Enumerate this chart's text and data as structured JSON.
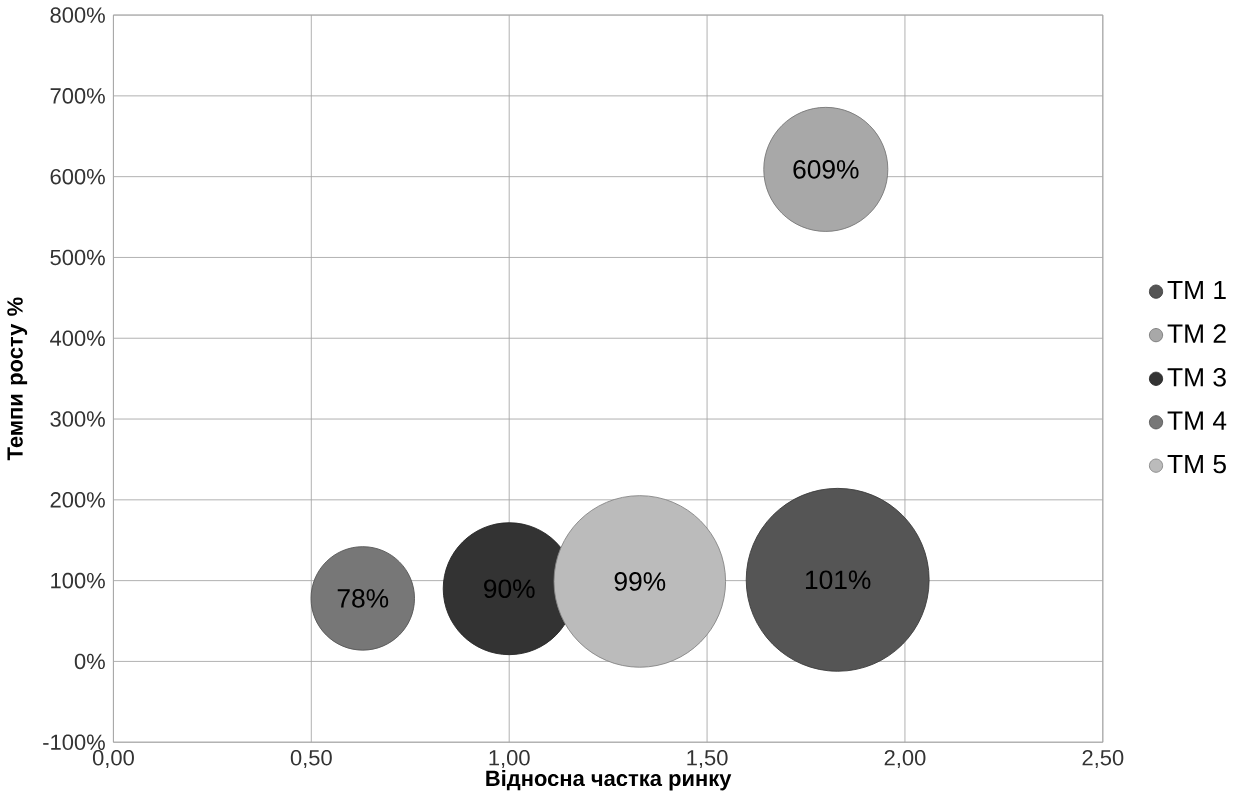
{
  "chart_data": {
    "type": "bubble",
    "xlabel": "Відносна частка ринку",
    "ylabel": "Темпи росту %",
    "xlim": [
      0,
      2.5
    ],
    "ylim": [
      -100,
      800
    ],
    "xticks": [
      {
        "value": 0,
        "label": "0,00"
      },
      {
        "value": 0.5,
        "label": "0,50"
      },
      {
        "value": 1,
        "label": "1,00"
      },
      {
        "value": 1.5,
        "label": "1,50"
      },
      {
        "value": 2,
        "label": "2,00"
      },
      {
        "value": 2.5,
        "label": "2,50"
      }
    ],
    "yticks": [
      {
        "value": -100,
        "label": "-100%"
      },
      {
        "value": 0,
        "label": "0%"
      },
      {
        "value": 100,
        "label": "100%"
      },
      {
        "value": 200,
        "label": "200%"
      },
      {
        "value": 300,
        "label": "300%"
      },
      {
        "value": 400,
        "label": "400%"
      },
      {
        "value": 500,
        "label": "500%"
      },
      {
        "value": 600,
        "label": "600%"
      },
      {
        "value": 700,
        "label": "700%"
      },
      {
        "value": 800,
        "label": "800%"
      }
    ],
    "grid": true,
    "legend": "right",
    "series": [
      {
        "name": "ТМ 1",
        "color": "#555555",
        "x": [
          1.83
        ],
        "values": [
          101
        ],
        "sizes": [
          1
        ],
        "value_labels": [
          "101%"
        ]
      },
      {
        "name": "ТМ 2",
        "color": "#a8a8a8",
        "x": [
          1.8
        ],
        "values": [
          609
        ],
        "sizes": [
          0.46
        ],
        "value_labels": [
          "609%"
        ]
      },
      {
        "name": "ТМ 3",
        "color": "#333333",
        "x": [
          1.0
        ],
        "values": [
          90
        ],
        "sizes": [
          0.52
        ],
        "value_labels": [
          "90%"
        ]
      },
      {
        "name": "ТМ 4",
        "color": "#777777",
        "x": [
          0.63
        ],
        "values": [
          78
        ],
        "sizes": [
          0.32
        ],
        "value_labels": [
          "78%"
        ]
      },
      {
        "name": "ТМ 5",
        "color": "#bbbbbb",
        "x": [
          1.33
        ],
        "values": [
          99
        ],
        "sizes": [
          0.88
        ],
        "value_labels": [
          "99%"
        ]
      }
    ]
  }
}
